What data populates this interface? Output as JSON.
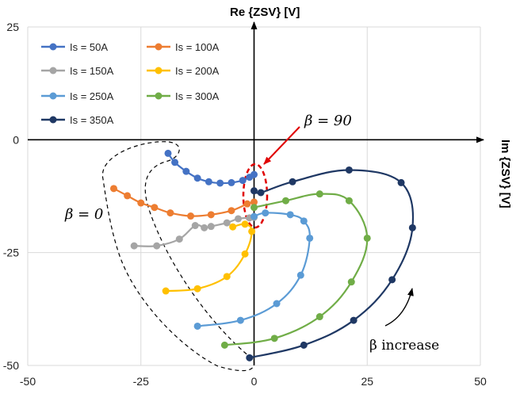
{
  "chart_data": {
    "type": "scatter",
    "xlabel": "",
    "ylabel": "",
    "x_axis_title": "Im {ZSV} [V]",
    "y_axis_title": "Re {ZSV} [V]",
    "xlim": [
      -50,
      50
    ],
    "ylim": [
      -50,
      25
    ],
    "x_ticks": [
      "-50",
      "-25",
      "0",
      "25",
      "50"
    ],
    "y_ticks": [
      "25",
      "0",
      "-25",
      "-50"
    ],
    "x_tick_values": [
      -50,
      -25,
      0,
      25,
      50
    ],
    "y_tick_values": [
      25,
      0,
      -25,
      -50
    ],
    "grid": true,
    "legend_position": "top-left",
    "series": [
      {
        "name": "Is = 50A",
        "color": "#4472C4",
        "points": [
          [
            -19,
            -3
          ],
          [
            -17.5,
            -5
          ],
          [
            -15,
            -7
          ],
          [
            -12.5,
            -8.5
          ],
          [
            -10,
            -9.3
          ],
          [
            -7.5,
            -9.6
          ],
          [
            -5,
            -9.5
          ],
          [
            -2.5,
            -9
          ],
          [
            -1,
            -8.3
          ],
          [
            0,
            -7.7
          ]
        ]
      },
      {
        "name": "Is = 100A",
        "color": "#ED7D31",
        "points": [
          [
            -31,
            -10.8
          ],
          [
            -28,
            -12.4
          ],
          [
            -25,
            -14
          ],
          [
            -22,
            -15
          ],
          [
            -18.5,
            -16.2
          ],
          [
            -14,
            -16.9
          ],
          [
            -9.5,
            -16.6
          ],
          [
            -5,
            -15.7
          ],
          [
            -1.5,
            -14.2
          ],
          [
            0,
            -13.8
          ]
        ]
      },
      {
        "name": "Is = 150A",
        "color": "#A5A5A5",
        "points": [
          [
            -26.5,
            -23.5
          ],
          [
            -21.5,
            -23.5
          ],
          [
            -16.5,
            -22
          ],
          [
            -13,
            -19
          ],
          [
            -11,
            -19.5
          ],
          [
            -9.5,
            -19.2
          ],
          [
            -6,
            -18.4
          ],
          [
            -3.5,
            -17.5
          ],
          [
            -1,
            -17.3
          ],
          [
            0,
            -17.2
          ]
        ]
      },
      {
        "name": "Is = 200A",
        "color": "#FFC000",
        "points": [
          [
            -19.5,
            -33.5
          ],
          [
            -12.5,
            -33
          ],
          [
            -6,
            -30.3
          ],
          [
            -2,
            -25.3
          ],
          [
            -0.5,
            -20.3
          ],
          [
            -2,
            -18.7
          ],
          [
            -4.7,
            -19.3
          ]
        ]
      },
      {
        "name": "Is = 250A",
        "color": "#5B9BD5",
        "points": [
          [
            -12.5,
            -41.3
          ],
          [
            -3,
            -40
          ],
          [
            5,
            -36.3
          ],
          [
            10.3,
            -30
          ],
          [
            12.3,
            -21.8
          ],
          [
            11,
            -18
          ],
          [
            8,
            -16.6
          ],
          [
            2.5,
            -16.2
          ],
          [
            0,
            -17
          ]
        ]
      },
      {
        "name": "Is = 300A",
        "color": "#70AD47",
        "points": [
          [
            -6.5,
            -45.5
          ],
          [
            4.5,
            -44
          ],
          [
            14.5,
            -39.2
          ],
          [
            21.5,
            -31.5
          ],
          [
            25,
            -21.8
          ],
          [
            21,
            -13.5
          ],
          [
            14.5,
            -12
          ],
          [
            7,
            -13.5
          ],
          [
            0,
            -15
          ]
        ]
      },
      {
        "name": "Is = 350A",
        "color": "#1F3864",
        "points": [
          [
            -1,
            -48.3
          ],
          [
            11,
            -45.5
          ],
          [
            22,
            -40
          ],
          [
            30.5,
            -31
          ],
          [
            35,
            -19.5
          ],
          [
            32.5,
            -9.5
          ],
          [
            21,
            -6.7
          ],
          [
            8.5,
            -9.3
          ],
          [
            1.5,
            -11.7
          ],
          [
            0,
            -11.3
          ]
        ]
      }
    ],
    "annotations": {
      "beta_90": "β = 90",
      "beta_0": "β = 0",
      "beta_increase": "β increase"
    }
  }
}
